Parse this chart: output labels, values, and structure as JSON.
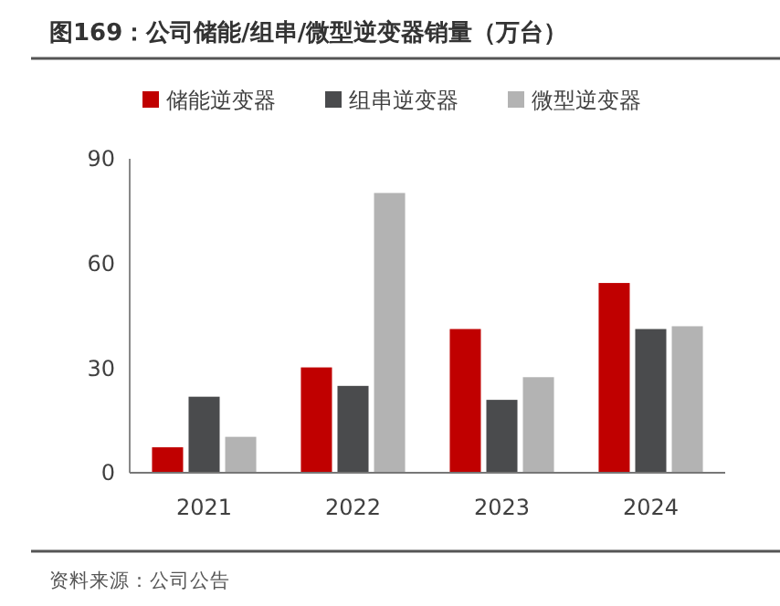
{
  "chart_data": {
    "type": "bar",
    "title": "图169：公司储能/组串/微型逆变器销量（万台）",
    "categories": [
      "2021",
      "2022",
      "2023",
      "2024"
    ],
    "series": [
      {
        "name": "储能逆变器",
        "color": "#c00000",
        "values": [
          7.3,
          30.2,
          41.2,
          54.4
        ]
      },
      {
        "name": "组串逆变器",
        "color": "#4a4b4d",
        "values": [
          21.8,
          24.9,
          20.9,
          41.2
        ]
      },
      {
        "name": "微型逆变器",
        "color": "#b3b3b3",
        "values": [
          10.3,
          80.2,
          27.4,
          42.0
        ]
      }
    ],
    "ylim": [
      0,
      90
    ],
    "yticks": [
      0,
      30,
      60,
      90
    ],
    "grid": false,
    "legend": "top",
    "annotations": [
      "资料来源：公司公告"
    ]
  }
}
